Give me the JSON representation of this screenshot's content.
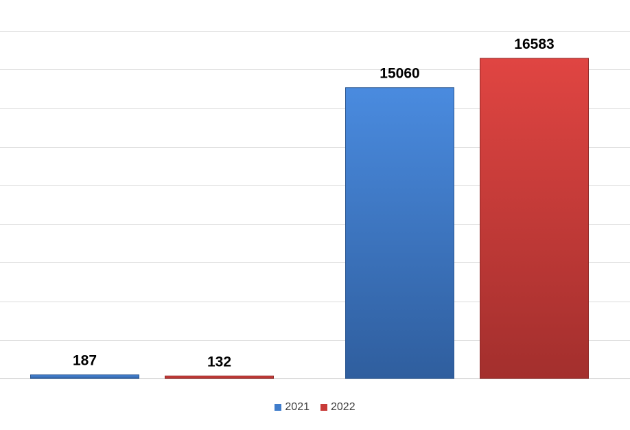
{
  "chart_data": {
    "type": "bar",
    "categories": [
      "",
      ""
    ],
    "series": [
      {
        "name": "2021",
        "values": [
          187,
          15060
        ],
        "color": "#3F7CCB"
      },
      {
        "name": "2022",
        "values": [
          132,
          16583
        ],
        "color": "#C83A38"
      }
    ],
    "ylim": [
      0,
      18000
    ],
    "y_gridline_step": 2000,
    "grid": true,
    "data_labels": true,
    "legend_position": "bottom",
    "title": "",
    "xlabel": "",
    "ylabel": ""
  }
}
